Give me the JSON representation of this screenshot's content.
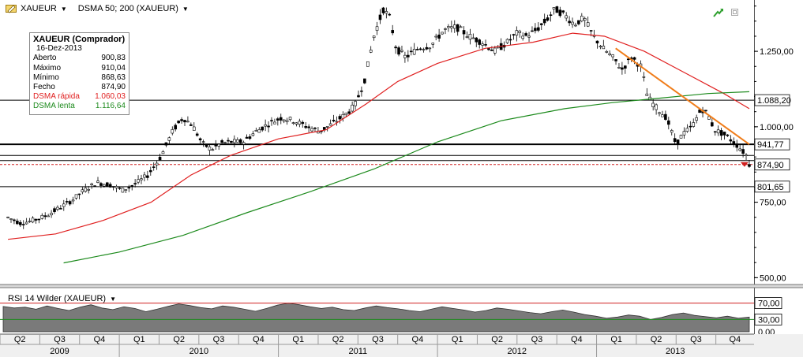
{
  "toolbar": {
    "symbol": "XAUEUR",
    "indicator": "DSMA 50; 200 (XAUEUR)"
  },
  "infobox": {
    "title": "XAUEUR (Comprador)",
    "date": "16-Dez-2013",
    "rows": [
      {
        "label": "Aberto",
        "value": "900,83",
        "color": "#000000"
      },
      {
        "label": "Máximo",
        "value": "910,04",
        "color": "#000000"
      },
      {
        "label": "Mínimo",
        "value": "868,63",
        "color": "#000000"
      },
      {
        "label": "Fecho",
        "value": "874,90",
        "color": "#000000"
      },
      {
        "label": "DSMA rápida",
        "value": "1.060,03",
        "color": "#e02020"
      },
      {
        "label": "DSMA lenta",
        "value": "1.116,64",
        "color": "#1c8a1c"
      }
    ]
  },
  "rsi": {
    "label": "RSI 14 Wilder (XAUEUR)",
    "upper": 70,
    "lower": 30,
    "tick_labels": [
      "70,00",
      "30,00",
      "0,00"
    ]
  },
  "chart_data": {
    "type": "candlestick",
    "y_axis_ticks": [
      {
        "value": 1250,
        "label": "1.250,00"
      },
      {
        "value": 1000,
        "label": "1.000,00"
      },
      {
        "value": 750,
        "label": "750,00"
      },
      {
        "value": 500,
        "label": "500,00"
      }
    ],
    "ylim": [
      480,
      1420
    ],
    "horizontal_levels": [
      {
        "value": 1088.2,
        "label": "1.088,20",
        "style": "thin"
      },
      {
        "value": 941.77,
        "label": "941,77",
        "style": "thick"
      },
      {
        "value": 874.9,
        "label": "874,90",
        "style": "dashed-red"
      },
      {
        "value": 801.65,
        "label": "801,65",
        "style": "thin"
      }
    ],
    "x_quarters": [
      "Q2",
      "Q3",
      "Q4",
      "Q1",
      "Q2",
      "Q3",
      "Q4",
      "Q1",
      "Q2",
      "Q3",
      "Q4",
      "Q1",
      "Q2",
      "Q3",
      "Q4",
      "Q1",
      "Q2",
      "Q3",
      "Q4"
    ],
    "x_years": [
      "2009",
      "2010",
      "2011",
      "2012",
      "2013"
    ],
    "price_path": [
      [
        2009.3,
        700
      ],
      [
        2009.38,
        680
      ],
      [
        2009.46,
        690
      ],
      [
        2009.54,
        705
      ],
      [
        2009.62,
        730
      ],
      [
        2009.7,
        755
      ],
      [
        2009.78,
        790
      ],
      [
        2009.86,
        815
      ],
      [
        2009.94,
        808
      ],
      [
        2010.02,
        790
      ],
      [
        2010.1,
        810
      ],
      [
        2010.18,
        840
      ],
      [
        2010.26,
        900
      ],
      [
        2010.34,
        990
      ],
      [
        2010.4,
        1030
      ],
      [
        2010.46,
        1005
      ],
      [
        2010.52,
        945
      ],
      [
        2010.58,
        925
      ],
      [
        2010.64,
        945
      ],
      [
        2010.7,
        950
      ],
      [
        2010.78,
        950
      ],
      [
        2010.86,
        985
      ],
      [
        2010.94,
        1010
      ],
      [
        2011.02,
        1030
      ],
      [
        2011.1,
        1020
      ],
      [
        2011.18,
        1000
      ],
      [
        2011.26,
        985
      ],
      [
        2011.34,
        1010
      ],
      [
        2011.42,
        1040
      ],
      [
        2011.48,
        1070
      ],
      [
        2011.54,
        1150
      ],
      [
        2011.6,
        1300
      ],
      [
        2011.66,
        1390
      ],
      [
        2011.7,
        1360
      ],
      [
        2011.74,
        1260
      ],
      [
        2011.8,
        1230
      ],
      [
        2011.88,
        1260
      ],
      [
        2011.96,
        1270
      ],
      [
        2012.04,
        1320
      ],
      [
        2012.12,
        1330
      ],
      [
        2012.2,
        1300
      ],
      [
        2012.28,
        1280
      ],
      [
        2012.36,
        1250
      ],
      [
        2012.44,
        1280
      ],
      [
        2012.5,
        1310
      ],
      [
        2012.56,
        1300
      ],
      [
        2012.62,
        1320
      ],
      [
        2012.68,
        1350
      ],
      [
        2012.74,
        1390
      ],
      [
        2012.8,
        1370
      ],
      [
        2012.86,
        1340
      ],
      [
        2012.92,
        1360
      ],
      [
        2012.98,
        1300
      ],
      [
        2013.04,
        1260
      ],
      [
        2013.1,
        1230
      ],
      [
        2013.16,
        1190
      ],
      [
        2013.22,
        1230
      ],
      [
        2013.28,
        1200
      ],
      [
        2013.32,
        1100
      ],
      [
        2013.38,
        1060
      ],
      [
        2013.44,
        1030
      ],
      [
        2013.5,
        940
      ],
      [
        2013.54,
        975
      ],
      [
        2013.6,
        1000
      ],
      [
        2013.66,
        1060
      ],
      [
        2013.7,
        1040
      ],
      [
        2013.74,
        990
      ],
      [
        2013.8,
        975
      ],
      [
        2013.86,
        950
      ],
      [
        2013.9,
        930
      ],
      [
        2013.95,
        900
      ],
      [
        2013.96,
        875
      ]
    ],
    "series": [
      {
        "name": "DSMA rápida",
        "color": "#e02020",
        "points": [
          [
            2009.3,
            627
          ],
          [
            2009.6,
            645
          ],
          [
            2009.9,
            690
          ],
          [
            2010.2,
            750
          ],
          [
            2010.45,
            840
          ],
          [
            2010.7,
            905
          ],
          [
            2011.0,
            960
          ],
          [
            2011.3,
            990
          ],
          [
            2011.55,
            1075
          ],
          [
            2011.75,
            1150
          ],
          [
            2012.0,
            1210
          ],
          [
            2012.3,
            1260
          ],
          [
            2012.6,
            1280
          ],
          [
            2012.85,
            1310
          ],
          [
            2013.05,
            1300
          ],
          [
            2013.3,
            1250
          ],
          [
            2013.55,
            1180
          ],
          [
            2013.8,
            1110
          ],
          [
            2013.96,
            1060
          ]
        ]
      },
      {
        "name": "DSMA lenta",
        "color": "#1c8a1c",
        "points": [
          [
            2009.65,
            549
          ],
          [
            2010.0,
            585
          ],
          [
            2010.4,
            640
          ],
          [
            2010.8,
            715
          ],
          [
            2011.2,
            785
          ],
          [
            2011.6,
            860
          ],
          [
            2012.0,
            950
          ],
          [
            2012.4,
            1020
          ],
          [
            2012.8,
            1060
          ],
          [
            2013.1,
            1080
          ],
          [
            2013.4,
            1095
          ],
          [
            2013.7,
            1110
          ],
          [
            2013.96,
            1116
          ]
        ]
      },
      {
        "name": "",
        "color": "#f07d1a",
        "points": [
          [
            2013.12,
            1260
          ],
          [
            2013.96,
            941.77
          ]
        ]
      }
    ],
    "rsi_path": [
      62,
      58,
      60,
      55,
      63,
      57,
      52,
      60,
      66,
      58,
      54,
      61,
      57,
      49,
      55,
      62,
      68,
      64,
      59,
      56,
      63,
      60,
      55,
      50,
      57,
      65,
      70,
      66,
      61,
      57,
      60,
      54,
      52,
      58,
      63,
      59,
      56,
      52,
      49,
      55,
      61,
      57,
      53,
      48,
      52,
      58,
      55,
      51,
      47,
      44,
      49,
      53,
      48,
      42,
      38,
      33,
      36,
      41,
      38,
      30,
      35,
      42,
      46,
      40,
      37,
      34,
      38,
      33,
      36
    ]
  }
}
